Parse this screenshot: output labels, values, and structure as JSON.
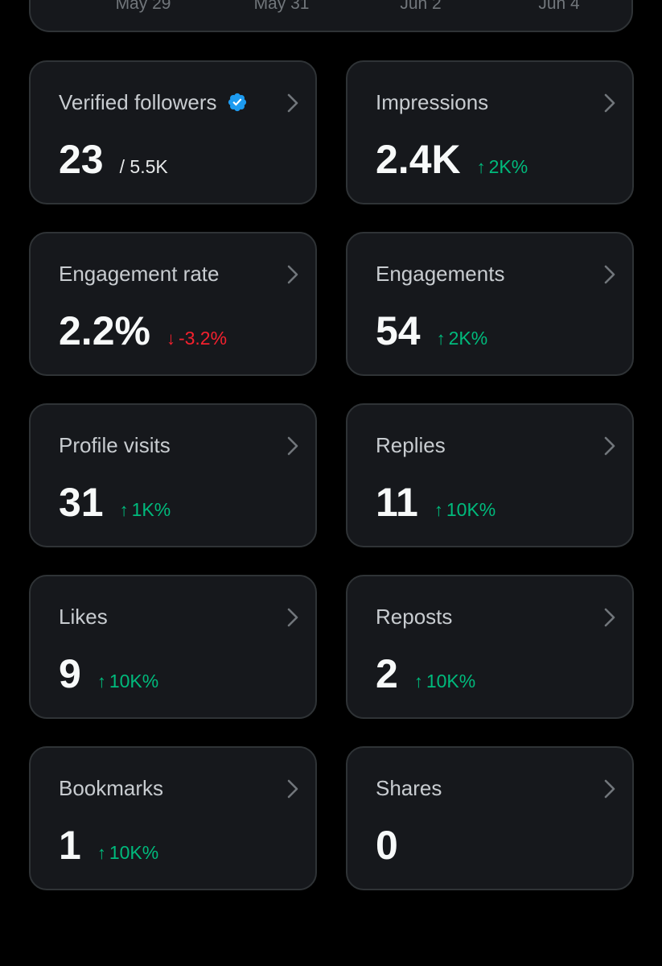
{
  "chart": {
    "dates": [
      "May 29",
      "May 31",
      "Jun 2",
      "Jun 4"
    ]
  },
  "metrics": [
    {
      "label": "Verified followers",
      "value": "23",
      "sub": "/ 5.5K",
      "verified": true
    },
    {
      "label": "Impressions",
      "value": "2.4K",
      "arrow": "↑",
      "change": "2K%",
      "direction": "up"
    },
    {
      "label": "Engagement rate",
      "value": "2.2%",
      "arrow": "↓",
      "change": "-3.2%",
      "direction": "down"
    },
    {
      "label": "Engagements",
      "value": "54",
      "arrow": "↑",
      "change": "2K%",
      "direction": "up"
    },
    {
      "label": "Profile visits",
      "value": "31",
      "arrow": "↑",
      "change": "1K%",
      "direction": "up"
    },
    {
      "label": "Replies",
      "value": "11",
      "arrow": "↑",
      "change": "10K%",
      "direction": "up"
    },
    {
      "label": "Likes",
      "value": "9",
      "arrow": "↑",
      "change": "10K%",
      "direction": "up"
    },
    {
      "label": "Reposts",
      "value": "2",
      "arrow": "↑",
      "change": "10K%",
      "direction": "up"
    },
    {
      "label": "Bookmarks",
      "value": "1",
      "arrow": "↑",
      "change": "10K%",
      "direction": "up"
    },
    {
      "label": "Shares",
      "value": "0"
    }
  ],
  "colors": {
    "up": "#00ba7c",
    "down": "#f4212e",
    "verified": "#1d9bf0"
  },
  "icons": {
    "chevron": "chevron-right-icon",
    "verified": "verified-badge-icon"
  }
}
